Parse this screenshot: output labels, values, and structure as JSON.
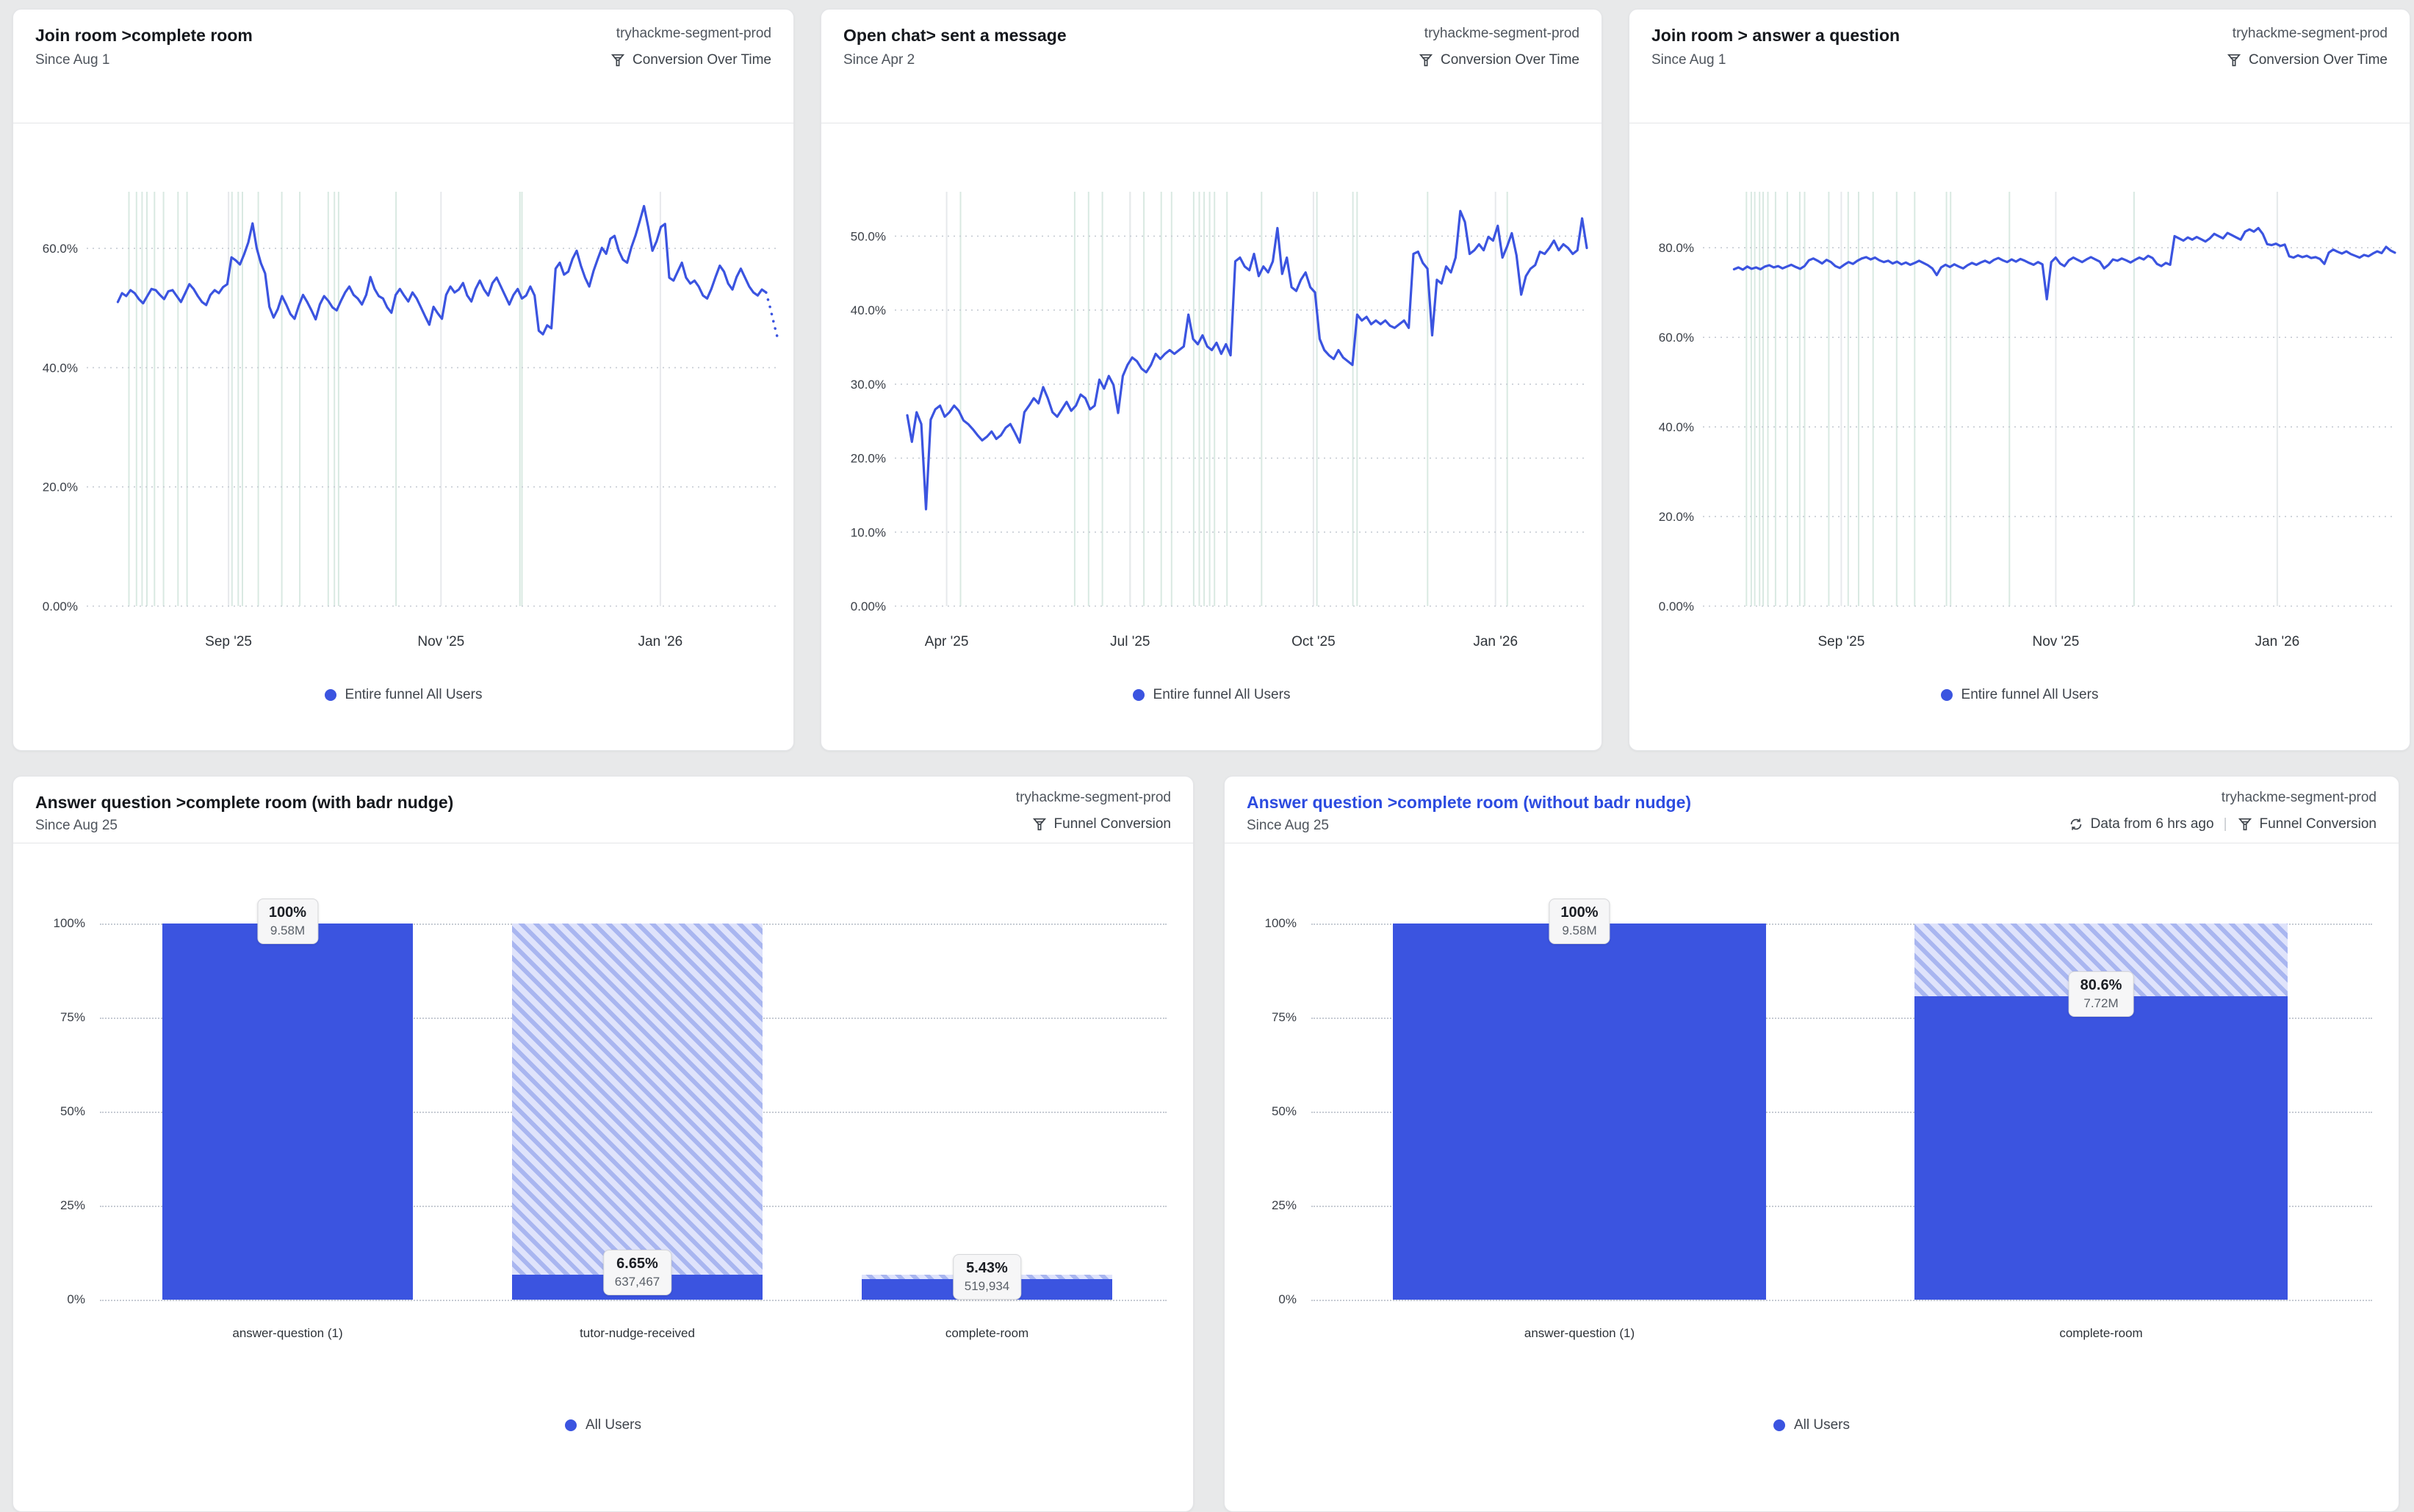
{
  "colors": {
    "accent": "#3b54e0",
    "link_title": "#2c4be0",
    "hatch_bg": "#dfe3fb",
    "hatch_stripe": "#a9b6f0",
    "event_marker": "#d9e9e2",
    "month_grid": "#e7e9ec",
    "dot_grid": "#c6cbd3",
    "ylabel": "#3a3f47",
    "xlabel": "#2e3339"
  },
  "cards": [
    {
      "title": "Join room >complete room",
      "subtitle": "Since Aug 1",
      "project": "tryhackme-segment-prod",
      "mode": "Conversion Over Time",
      "legend": "Entire funnel All Users"
    },
    {
      "title": "Open chat> sent a message",
      "subtitle": "Since Apr 2",
      "project": "tryhackme-segment-prod",
      "mode": "Conversion Over Time",
      "legend": "Entire funnel All Users"
    },
    {
      "title": "Join room > answer a question",
      "subtitle": "Since Aug 1",
      "project": "tryhackme-segment-prod",
      "mode": "Conversion Over Time",
      "legend": "Entire funnel All Users"
    },
    {
      "title": "Answer question >complete room (with badr nudge)",
      "subtitle": "Since Aug 25",
      "project": "tryhackme-segment-prod",
      "mode": "Funnel Conversion",
      "legend": "All Users"
    },
    {
      "title": "Answer question >complete room (without badr nudge)",
      "subtitle": "Since Aug 25",
      "project": "tryhackme-segment-prod",
      "mode": "Funnel Conversion",
      "freshness": "Data from 6 hrs ago",
      "legend": "All Users"
    }
  ],
  "chart_data": [
    {
      "type": "line",
      "title": "Join room >complete room",
      "legend_position": "bottom-center",
      "grid": "dotted-horizontal",
      "x_ticks": [
        {
          "label": "Sep '25",
          "f": 0.205
        },
        {
          "label": "Nov '25",
          "f": 0.512
        },
        {
          "label": "Jan '26",
          "f": 0.829
        }
      ],
      "y_ticks": [
        {
          "label": "0.00%",
          "v": 0
        },
        {
          "label": "20.0%",
          "v": 20
        },
        {
          "label": "40.0%",
          "v": 40
        },
        {
          "label": "60.0%",
          "v": 60
        }
      ],
      "ylim": [
        0,
        69.5
      ],
      "x_start_f": 0.045,
      "dashed_tail": 3,
      "event_markers": [
        0.061,
        0.072,
        0.08,
        0.087,
        0.098,
        0.111,
        0.132,
        0.145,
        0.21,
        0.219,
        0.225,
        0.248,
        0.282,
        0.308,
        0.349,
        0.358,
        0.364,
        0.447,
        0.626,
        0.629
      ],
      "series": [
        {
          "name": "Entire funnel All Users",
          "unit": "%",
          "values": [
            51,
            52.5,
            52,
            53,
            52.5,
            51.5,
            50.8,
            52,
            53.2,
            53,
            52.2,
            51.5,
            52.8,
            53,
            52,
            51,
            52.5,
            54,
            53.2,
            52,
            51,
            50.5,
            52.2,
            53,
            52.5,
            53.5,
            54,
            58.5,
            58,
            57.3,
            59,
            61,
            64.2,
            60,
            57.5,
            55.8,
            50.2,
            48.4,
            49.8,
            52,
            50.6,
            49,
            48.2,
            50.4,
            52.2,
            51,
            49.6,
            48.1,
            50.6,
            52,
            51.2,
            50.1,
            49.6,
            51.2,
            52.6,
            53.6,
            52.2,
            51.6,
            50.6,
            52.2,
            55.2,
            53.2,
            52,
            51.6,
            50.1,
            49.2,
            52.2,
            53.2,
            52.1,
            51.1,
            52.6,
            51.6,
            50.1,
            48.6,
            47.2,
            50.2,
            49.1,
            48.2,
            52.2,
            53.6,
            52.6,
            53.1,
            54.2,
            52.1,
            51.1,
            53.2,
            54.6,
            53.1,
            52.1,
            54.2,
            55.1,
            53.6,
            52.1,
            50.6,
            52.2,
            53.2,
            51.6,
            52.1,
            53.6,
            52.1,
            46.2,
            45.6,
            47.1,
            46.6,
            56.6,
            57.6,
            55.6,
            56.1,
            58.2,
            59.6,
            57.1,
            55.1,
            53.6,
            56.2,
            58.2,
            60.1,
            59.1,
            61.6,
            62.1,
            59.6,
            58.1,
            57.6,
            60.2,
            62.2,
            64.6,
            67.1,
            63.6,
            59.6,
            61.2,
            63.6,
            64.1,
            55.1,
            54.6,
            56.1,
            57.6,
            55.1,
            54.1,
            54.6,
            53.6,
            52.1,
            51.6,
            53.2,
            55.2,
            57.1,
            56.1,
            54.1,
            53.1,
            55.2,
            56.6,
            55.1,
            53.6,
            52.6,
            52.1,
            53.1,
            52.6,
            50,
            47,
            44.2
          ]
        }
      ]
    },
    {
      "type": "line",
      "title": "Open chat> sent a message",
      "legend_position": "bottom-center",
      "grid": "dotted-horizontal",
      "x_ticks": [
        {
          "label": "Apr '25",
          "f": 0.075
        },
        {
          "label": "Jul '25",
          "f": 0.34
        },
        {
          "label": "Oct '25",
          "f": 0.605
        },
        {
          "label": "Jan '26",
          "f": 0.868
        }
      ],
      "y_ticks": [
        {
          "label": "0.00%",
          "v": 0
        },
        {
          "label": "10.0%",
          "v": 10
        },
        {
          "label": "20.0%",
          "v": 20
        },
        {
          "label": "30.0%",
          "v": 30
        },
        {
          "label": "40.0%",
          "v": 40
        },
        {
          "label": "50.0%",
          "v": 50
        }
      ],
      "ylim": [
        0,
        56
      ],
      "x_start_f": 0.018,
      "dashed_tail": 0,
      "event_markers": [
        0.095,
        0.26,
        0.28,
        0.3,
        0.34,
        0.36,
        0.385,
        0.4,
        0.432,
        0.44,
        0.447,
        0.455,
        0.462,
        0.48,
        0.53,
        0.61,
        0.662,
        0.668,
        0.77,
        0.885
      ],
      "series": [
        {
          "name": "Entire funnel All Users",
          "unit": "%",
          "values": [
            25.8,
            22.2,
            26.2,
            24.6,
            13.1,
            25.2,
            26.6,
            27.1,
            25.6,
            26.2,
            27.1,
            26.4,
            25.1,
            24.6,
            23.9,
            23.1,
            22.4,
            22.9,
            23.6,
            22.6,
            23.1,
            24.1,
            24.6,
            23.4,
            22.1,
            26.2,
            27.1,
            28.1,
            27.4,
            29.6,
            28.1,
            26.2,
            25.6,
            26.6,
            27.6,
            26.4,
            27.1,
            28.6,
            28.1,
            26.6,
            27.1,
            30.6,
            29.4,
            31.1,
            29.9,
            26.1,
            31.1,
            32.6,
            33.6,
            33.1,
            32.1,
            31.6,
            32.6,
            34.1,
            33.4,
            34.1,
            34.6,
            34.1,
            34.6,
            35.1,
            39.4,
            36.1,
            35.4,
            36.6,
            35.1,
            34.6,
            35.6,
            34.1,
            35.4,
            33.9,
            46.6,
            47.1,
            45.9,
            45.4,
            47.6,
            44.6,
            45.9,
            45.1,
            46.6,
            51.1,
            44.9,
            47.1,
            43.1,
            42.6,
            44.1,
            45.1,
            43.1,
            42.4,
            36.1,
            34.6,
            33.9,
            33.4,
            34.6,
            33.6,
            33.1,
            32.6,
            39.4,
            38.6,
            39.1,
            38.1,
            38.6,
            38.1,
            38.6,
            37.9,
            37.6,
            38.1,
            38.6,
            37.6,
            47.6,
            47.9,
            46.4,
            45.6,
            36.6,
            44.1,
            43.6,
            45.9,
            45.1,
            47.1,
            53.4,
            51.9,
            47.6,
            48.1,
            48.9,
            48.1,
            49.9,
            49.4,
            51.4,
            47.1,
            48.6,
            50.4,
            47.4,
            42.1,
            44.6,
            45.6,
            46.1,
            47.9,
            47.6,
            48.4,
            49.4,
            48.1,
            48.9,
            48.4,
            47.6,
            48.1,
            52.4,
            48.4
          ]
        }
      ]
    },
    {
      "type": "line",
      "title": "Join room > answer a question",
      "legend_position": "bottom-center",
      "grid": "dotted-horizontal",
      "x_ticks": [
        {
          "label": "Sep '25",
          "f": 0.2
        },
        {
          "label": "Nov '25",
          "f": 0.51
        },
        {
          "label": "Jan '26",
          "f": 0.83
        }
      ],
      "y_ticks": [
        {
          "label": "0.00%",
          "v": 0
        },
        {
          "label": "20.0%",
          "v": 20
        },
        {
          "label": "40.0%",
          "v": 40
        },
        {
          "label": "60.0%",
          "v": 60
        },
        {
          "label": "80.0%",
          "v": 80
        }
      ],
      "ylim": [
        0,
        92.5
      ],
      "x_start_f": 0.045,
      "dashed_tail": 0,
      "event_markers": [
        0.063,
        0.07,
        0.075,
        0.082,
        0.087,
        0.094,
        0.105,
        0.122,
        0.14,
        0.147,
        0.182,
        0.21,
        0.225,
        0.246,
        0.28,
        0.306,
        0.352,
        0.358,
        0.443,
        0.623,
        0.83
      ],
      "series": [
        {
          "name": "Entire funnel All Users",
          "unit": "%",
          "values": [
            75.2,
            75.6,
            75.1,
            75.8,
            75.3,
            75.6,
            75.2,
            75.8,
            76.1,
            75.6,
            75.9,
            75.4,
            75.8,
            76.2,
            75.7,
            75.3,
            75.9,
            77.2,
            77.6,
            77.1,
            76.5,
            77.3,
            76.8,
            75.9,
            75.5,
            76.2,
            76.8,
            76.4,
            77.1,
            77.6,
            77.9,
            77.4,
            77.8,
            77.2,
            76.8,
            77.1,
            76.5,
            76.9,
            76.3,
            76.7,
            76.2,
            76.6,
            77.1,
            76.6,
            76.1,
            75.4,
            73.9,
            75.6,
            76.2,
            75.7,
            76.3,
            75.8,
            75.4,
            76.1,
            76.6,
            76.2,
            76.7,
            77.1,
            76.6,
            77.3,
            77.7,
            77.2,
            76.8,
            77.4,
            76.9,
            77.5,
            77.1,
            76.6,
            76.2,
            76.8,
            76.3,
            68.5,
            76.8,
            77.8,
            76.5,
            75.9,
            77.2,
            77.8,
            77.3,
            76.8,
            77.4,
            77.9,
            77.4,
            76.9,
            75.4,
            76.2,
            77.4,
            77.1,
            77.6,
            77.2,
            76.7,
            77.3,
            77.8,
            77.4,
            78.2,
            77.7,
            76.4,
            75.9,
            76.6,
            76.2,
            82.6,
            82.1,
            81.6,
            82.3,
            81.8,
            82.4,
            81.9,
            81.4,
            82.1,
            83.1,
            82.6,
            82.1,
            83.3,
            82.8,
            82.3,
            81.8,
            83.6,
            84.1,
            83.6,
            84.4,
            83.1,
            80.8,
            80.6,
            80.9,
            80.4,
            80.7,
            78.1,
            77.8,
            78.3,
            77.9,
            78.2,
            77.7,
            77.9,
            77.5,
            76.4,
            78.9,
            79.6,
            79.1,
            78.7,
            79.2,
            78.6,
            78.2,
            77.8,
            78.4,
            78.1,
            78.7,
            79.2,
            78.8,
            80.2,
            79.4,
            78.9
          ]
        }
      ]
    },
    {
      "type": "funnel-bar",
      "title": "Answer question >complete room (with badr nudge)",
      "legend_position": "bottom-center",
      "y_ticks": [
        "0%",
        "25%",
        "50%",
        "75%",
        "100%"
      ],
      "steps": [
        {
          "label": "answer-question (1)",
          "pct": 100,
          "pct_label": "100%",
          "count": "9.58M",
          "prev_pct": null
        },
        {
          "label": "tutor-nudge-received",
          "pct": 6.65,
          "pct_label": "6.65%",
          "count": "637,467",
          "prev_pct": 100
        },
        {
          "label": "complete-room",
          "pct": 5.43,
          "pct_label": "5.43%",
          "count": "519,934",
          "prev_pct": 6.65
        }
      ]
    },
    {
      "type": "funnel-bar",
      "title": "Answer question >complete room (without badr nudge)",
      "legend_position": "bottom-center",
      "y_ticks": [
        "0%",
        "25%",
        "50%",
        "75%",
        "100%"
      ],
      "steps": [
        {
          "label": "answer-question (1)",
          "pct": 100,
          "pct_label": "100%",
          "count": "9.58M",
          "prev_pct": null
        },
        {
          "label": "complete-room",
          "pct": 80.6,
          "pct_label": "80.6%",
          "count": "7.72M",
          "prev_pct": 100
        }
      ]
    }
  ],
  "icons": {
    "mode": "funnel-filter",
    "refresh": "circular-arrows"
  }
}
